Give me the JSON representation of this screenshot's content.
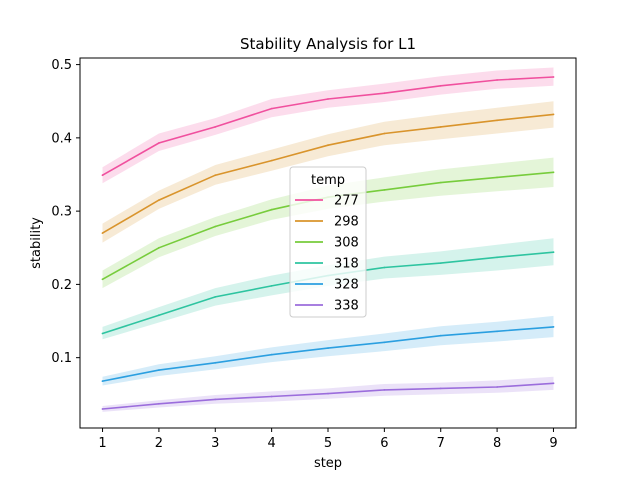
{
  "chart_data": {
    "type": "line",
    "title": "Stability Analysis for L1",
    "xlabel": "step",
    "ylabel": "stability",
    "x": [
      1,
      2,
      3,
      4,
      5,
      6,
      7,
      8,
      9
    ],
    "xlim": [
      0.6,
      9.4
    ],
    "ylim": [
      0.004,
      0.509
    ],
    "xticks": [
      "1",
      "2",
      "3",
      "4",
      "5",
      "6",
      "7",
      "8",
      "9"
    ],
    "yticks": [
      "0.1",
      "0.2",
      "0.3",
      "0.4",
      "0.5"
    ],
    "grid": false,
    "legend": {
      "title": "temp",
      "position": "center"
    },
    "series": [
      {
        "name": "277",
        "color": "#f0509e",
        "values": [
          0.349,
          0.393,
          0.415,
          0.44,
          0.453,
          0.461,
          0.471,
          0.479,
          0.483
        ],
        "lower": [
          0.338,
          0.382,
          0.404,
          0.428,
          0.441,
          0.449,
          0.459,
          0.467,
          0.471
        ],
        "upper": [
          0.36,
          0.406,
          0.427,
          0.453,
          0.465,
          0.474,
          0.484,
          0.492,
          0.496
        ]
      },
      {
        "name": "298",
        "color": "#d9942c",
        "values": [
          0.27,
          0.315,
          0.349,
          0.369,
          0.39,
          0.406,
          0.415,
          0.424,
          0.432
        ],
        "lower": [
          0.257,
          0.303,
          0.336,
          0.355,
          0.375,
          0.39,
          0.398,
          0.406,
          0.414
        ],
        "upper": [
          0.283,
          0.328,
          0.363,
          0.384,
          0.405,
          0.422,
          0.432,
          0.441,
          0.45
        ]
      },
      {
        "name": "308",
        "color": "#77cc3c",
        "values": [
          0.207,
          0.25,
          0.279,
          0.302,
          0.319,
          0.329,
          0.339,
          0.346,
          0.353
        ],
        "lower": [
          0.195,
          0.237,
          0.266,
          0.288,
          0.303,
          0.313,
          0.321,
          0.327,
          0.333
        ],
        "upper": [
          0.219,
          0.263,
          0.292,
          0.316,
          0.335,
          0.346,
          0.357,
          0.365,
          0.373
        ]
      },
      {
        "name": "318",
        "color": "#2ec4a0",
        "values": [
          0.133,
          0.158,
          0.183,
          0.198,
          0.212,
          0.223,
          0.229,
          0.237,
          0.244
        ],
        "lower": [
          0.125,
          0.148,
          0.171,
          0.185,
          0.198,
          0.208,
          0.213,
          0.219,
          0.226
        ],
        "upper": [
          0.142,
          0.169,
          0.195,
          0.212,
          0.226,
          0.238,
          0.245,
          0.254,
          0.263
        ]
      },
      {
        "name": "328",
        "color": "#2b9fe0",
        "values": [
          0.068,
          0.083,
          0.093,
          0.104,
          0.113,
          0.121,
          0.13,
          0.136,
          0.142
        ],
        "lower": [
          0.062,
          0.075,
          0.084,
          0.094,
          0.102,
          0.109,
          0.117,
          0.122,
          0.128
        ],
        "upper": [
          0.074,
          0.091,
          0.102,
          0.114,
          0.124,
          0.133,
          0.143,
          0.149,
          0.157
        ]
      },
      {
        "name": "338",
        "color": "#9b6ddc",
        "values": [
          0.03,
          0.037,
          0.043,
          0.047,
          0.051,
          0.056,
          0.058,
          0.06,
          0.065
        ],
        "lower": [
          0.026,
          0.032,
          0.037,
          0.04,
          0.044,
          0.048,
          0.05,
          0.052,
          0.056
        ],
        "upper": [
          0.034,
          0.042,
          0.049,
          0.054,
          0.058,
          0.064,
          0.066,
          0.069,
          0.074
        ]
      }
    ]
  }
}
